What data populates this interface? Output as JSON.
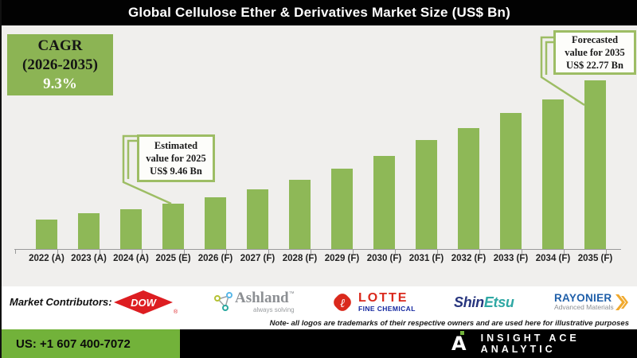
{
  "title": "Global Cellulose Ether & Derivatives Market Size (US$ Bn)",
  "cagr_box": {
    "line1": "CAGR",
    "line2": "(2026-2035)",
    "line3": "9.3%"
  },
  "callouts": {
    "estimated": {
      "line1": "Estimated",
      "line2": "value for 2025",
      "line3": "US$ 9.46 Bn"
    },
    "forecasted": {
      "line1": "Forecasted",
      "line2": "value for 2035",
      "line3": "US$ 22.77 Bn"
    }
  },
  "chart_data": {
    "type": "bar",
    "title": "Global Cellulose Ether & Derivatives Market Size (US$ Bn)",
    "unit": "US$ Bn",
    "categories": [
      "2022 (A)",
      "2023 (A)",
      "2024 (A)",
      "2025 (E)",
      "2026 (F)",
      "2027 (F)",
      "2028 (F)",
      "2029 (F)",
      "2030 (F)",
      "2031 (F)",
      "2032 (F)",
      "2033 (F)",
      "2034 (F)",
      "2035 (F)"
    ],
    "values": [
      7.75,
      8.41,
      8.89,
      9.46,
      10.12,
      11.03,
      12.03,
      13.21,
      14.63,
      16.34,
      17.63,
      19.23,
      20.66,
      22.77
    ],
    "labeled_points": {
      "2025 (E)": 9.46,
      "2035 (F)": 22.77
    },
    "cagr_period": "2026-2035",
    "cagr_percent": 9.3,
    "bar_color": "#8eb857",
    "grid": false,
    "legend": "none",
    "y_axis_visible": false
  },
  "contributors": {
    "label": "Market Contributors:",
    "dow": {
      "text": "DOW",
      "reg": "®"
    },
    "ashland": {
      "name": "Ashland",
      "tm": "™",
      "tagline": "always solving"
    },
    "lotte": {
      "name": "LOTTE",
      "sub": "FINE CHEMICAL"
    },
    "shinetsu": {
      "part1": "Shin",
      "part2": "Etsu"
    },
    "rayonier": {
      "name": "RAYONIER",
      "sub": "Advanced Materials"
    }
  },
  "note": "Note- all logos are trademarks of their respective owners and are used here for illustrative purposes",
  "footer": {
    "phone": "US: +1 607 400-7072",
    "brand": "INSIGHT ACE ANALYTIC"
  },
  "colors": {
    "title_bar_bg": "#020202",
    "chart_bg": "#f0efed",
    "bar_green": "#8eb857",
    "cagr_green": "#8cb454",
    "callout_border": "#9dbd64",
    "footer_green": "#72b23a",
    "dow_red": "#dd1d21",
    "lotte_red": "#da291c",
    "lotte_blue": "#1428a0",
    "shin_blue": "#27357e",
    "etsu_teal": "#2fa8a4",
    "rayonier_blue": "#1f5fa9",
    "rayonier_yellow": "#f0a92e",
    "ashland_gray": "#8c8f93"
  }
}
